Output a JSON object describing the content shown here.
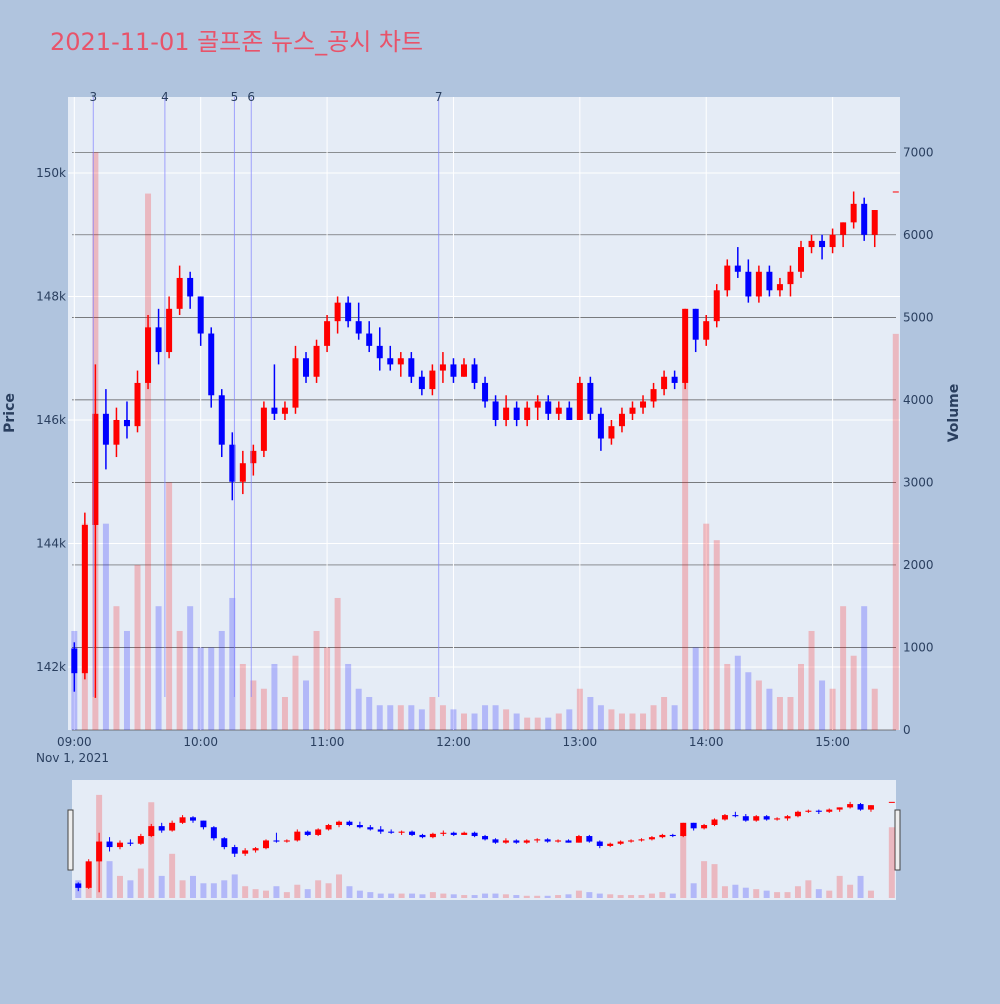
{
  "chart_data": {
    "type": "candlestick",
    "title": "2021-11-01 골프존 뉴스_공시 차트",
    "ylabel": "Price",
    "y2label": "Volume",
    "x_date_label": "Nov 1, 2021",
    "increasing_color": "#ff0000",
    "decreasing_color": "#0000ff",
    "xlim": [
      "08:57",
      "15:32"
    ],
    "xticks": [
      "09:00",
      "10:00",
      "11:00",
      "12:00",
      "13:00",
      "14:00",
      "15:00"
    ],
    "ylim": [
      140980,
      151230
    ],
    "yticks": [
      {
        "value": 142000,
        "label": "142k"
      },
      {
        "value": 144000,
        "label": "144k"
      },
      {
        "value": 146000,
        "label": "146k"
      },
      {
        "value": 148000,
        "label": "148k"
      },
      {
        "value": 150000,
        "label": "150k"
      }
    ],
    "y2lim": [
      0,
      7670
    ],
    "y2ticks": [
      0,
      1000,
      2000,
      3000,
      4000,
      5000,
      6000,
      7000
    ],
    "annotations": [
      {
        "x": "09:09",
        "label": "3"
      },
      {
        "x": "09:43",
        "label": "4"
      },
      {
        "x": "10:16",
        "label": "5"
      },
      {
        "x": "10:24",
        "label": "6"
      },
      {
        "x": "11:53",
        "label": "7"
      }
    ],
    "x": [
      "09:00",
      "09:05",
      "09:10",
      "09:15",
      "09:20",
      "09:25",
      "09:30",
      "09:35",
      "09:40",
      "09:45",
      "09:50",
      "09:55",
      "10:00",
      "10:05",
      "10:10",
      "10:15",
      "10:20",
      "10:25",
      "10:30",
      "10:35",
      "10:40",
      "10:45",
      "10:50",
      "10:55",
      "11:00",
      "11:05",
      "11:10",
      "11:15",
      "11:20",
      "11:25",
      "11:30",
      "11:35",
      "11:40",
      "11:45",
      "11:50",
      "11:55",
      "12:00",
      "12:05",
      "12:10",
      "12:15",
      "12:20",
      "12:25",
      "12:30",
      "12:35",
      "12:40",
      "12:45",
      "12:50",
      "12:55",
      "13:00",
      "13:05",
      "13:10",
      "13:15",
      "13:20",
      "13:25",
      "13:30",
      "13:35",
      "13:40",
      "13:45",
      "13:50",
      "13:55",
      "14:00",
      "14:05",
      "14:10",
      "14:15",
      "14:20",
      "14:25",
      "14:30",
      "14:35",
      "14:40",
      "14:45",
      "14:50",
      "14:55",
      "15:00",
      "15:05",
      "15:10",
      "15:15",
      "15:20",
      "15:30"
    ],
    "open": [
      142300,
      141900,
      144300,
      146100,
      145600,
      146000,
      145900,
      146600,
      147500,
      147100,
      147800,
      148300,
      148000,
      147400,
      146400,
      145600,
      145000,
      145300,
      145500,
      146200,
      146100,
      146200,
      147000,
      146700,
      147200,
      147600,
      147900,
      147600,
      147400,
      147200,
      147000,
      146900,
      147000,
      146700,
      146500,
      146800,
      146900,
      146700,
      146900,
      146600,
      146300,
      146000,
      146200,
      146000,
      146200,
      146300,
      146100,
      146200,
      146000,
      146600,
      146100,
      145700,
      145900,
      146100,
      146200,
      146300,
      146500,
      146700,
      146600,
      147800,
      147300,
      147600,
      148100,
      148500,
      148400,
      148000,
      148400,
      148100,
      148200,
      148400,
      148800,
      148900,
      148800,
      149000,
      149200,
      149500,
      149000,
      149700
    ],
    "high": [
      142400,
      144500,
      146900,
      146500,
      146200,
      146300,
      146800,
      147700,
      147800,
      148000,
      148500,
      148400,
      148000,
      147500,
      146500,
      145800,
      145500,
      145600,
      146300,
      146900,
      146300,
      147200,
      147100,
      147300,
      147700,
      148000,
      148000,
      147900,
      147600,
      147500,
      147200,
      147100,
      147100,
      146800,
      146900,
      147100,
      147000,
      147000,
      147000,
      146700,
      146400,
      146400,
      146300,
      146300,
      146400,
      146400,
      146300,
      146300,
      146700,
      146700,
      146200,
      146000,
      146200,
      146300,
      146400,
      146600,
      146800,
      146800,
      147800,
      147800,
      147700,
      148200,
      148600,
      148800,
      148600,
      148500,
      148500,
      148300,
      148500,
      148900,
      149000,
      149000,
      149100,
      149200,
      149700,
      149600,
      149400,
      149700
    ],
    "low": [
      141600,
      141800,
      141500,
      145200,
      145400,
      145700,
      145800,
      146500,
      146900,
      147000,
      147700,
      147800,
      147200,
      146200,
      145400,
      144700,
      144800,
      145100,
      145400,
      146000,
      146000,
      146100,
      146600,
      146600,
      147100,
      147400,
      147500,
      147300,
      147100,
      146800,
      146800,
      146700,
      146600,
      146400,
      146400,
      146600,
      146600,
      146700,
      146500,
      146200,
      145900,
      145900,
      145900,
      145900,
      146000,
      146000,
      146000,
      146000,
      146000,
      146000,
      145500,
      145600,
      145800,
      146000,
      146100,
      146200,
      146400,
      146500,
      146500,
      147100,
      147200,
      147500,
      148000,
      148300,
      147900,
      147900,
      148000,
      148000,
      148000,
      148300,
      148700,
      148600,
      148700,
      148800,
      149100,
      148900,
      148800,
      149700
    ],
    "close": [
      141900,
      144300,
      146100,
      145600,
      146000,
      145900,
      146600,
      147500,
      147100,
      147800,
      148300,
      148000,
      147400,
      146400,
      145600,
      145000,
      145300,
      145500,
      146200,
      146100,
      146200,
      147000,
      146700,
      147200,
      147600,
      147900,
      147600,
      147400,
      147200,
      147000,
      146900,
      147000,
      146700,
      146500,
      146800,
      146900,
      146700,
      146900,
      146600,
      146300,
      146000,
      146200,
      146000,
      146200,
      146300,
      146100,
      146200,
      146000,
      146600,
      146100,
      145700,
      145900,
      146100,
      146200,
      146300,
      146500,
      146700,
      146600,
      147800,
      147300,
      147600,
      148100,
      148500,
      148400,
      148000,
      148400,
      148100,
      148200,
      148400,
      148800,
      148900,
      148800,
      149000,
      149200,
      149500,
      149000,
      149400,
      149700
    ],
    "volume": [
      1200,
      2500,
      7000,
      2500,
      1500,
      1200,
      2000,
      6500,
      1500,
      3000,
      1200,
      1500,
      1000,
      1000,
      1200,
      1600,
      800,
      600,
      500,
      800,
      400,
      900,
      600,
      1200,
      1000,
      1600,
      800,
      500,
      400,
      300,
      300,
      300,
      300,
      250,
      400,
      300,
      250,
      200,
      200,
      300,
      300,
      250,
      200,
      150,
      150,
      150,
      200,
      250,
      500,
      400,
      300,
      250,
      200,
      200,
      200,
      300,
      400,
      300,
      4400,
      1000,
      2500,
      2300,
      800,
      900,
      700,
      600,
      500,
      400,
      400,
      800,
      1200,
      600,
      500,
      1500,
      900,
      1500,
      500,
      4800
    ]
  }
}
